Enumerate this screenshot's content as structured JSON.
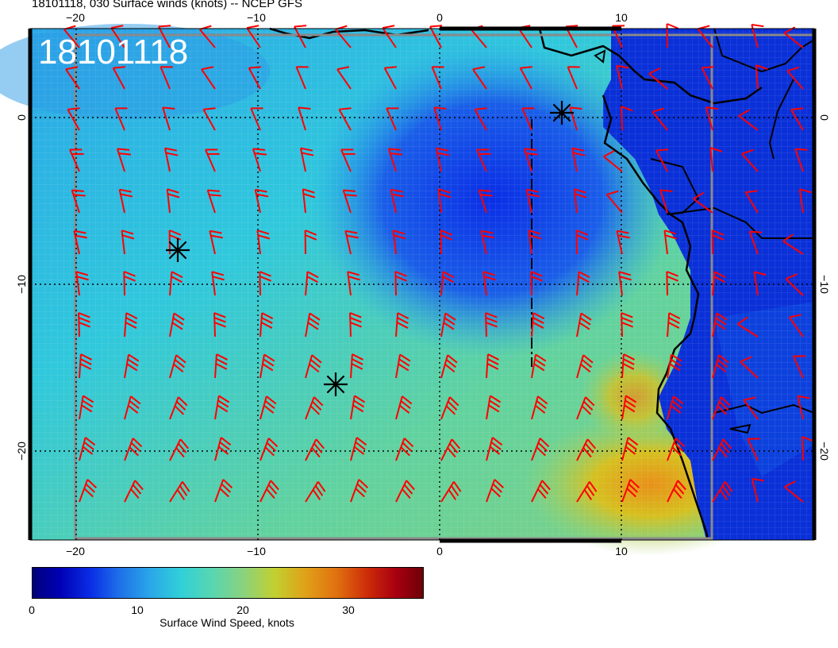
{
  "header": {
    "title": "18101118, 030 Surface winds (knots) -- NCEP GFS"
  },
  "map": {
    "stamp": "18101118",
    "lon_ticks_bottom": [
      "−20",
      "−10",
      "0",
      "10"
    ],
    "lon_ticks_top": [
      "−20",
      "−10",
      "0",
      "10"
    ],
    "lat_ticks_left": [
      "0",
      "−10",
      "−20"
    ],
    "lat_ticks_right": [
      "0",
      "−10",
      "−20"
    ],
    "graticule": {
      "lon": [
        -20,
        -10,
        0,
        10
      ],
      "lat": [
        0,
        -10,
        -20
      ]
    },
    "markers": [
      "star-marker",
      "star-marker",
      "star-marker"
    ],
    "barb_color": "#ff0000",
    "field_colors": {
      "weak": "#0a2ee6",
      "moderate": "#30d0d8",
      "strong": "#c2d030",
      "very_strong": "#e07010"
    }
  },
  "colorbar": {
    "title": "Surface Wind Speed, knots",
    "ticks": [
      "0",
      "10",
      "20",
      "30"
    ],
    "min": 0,
    "max": 37
  }
}
